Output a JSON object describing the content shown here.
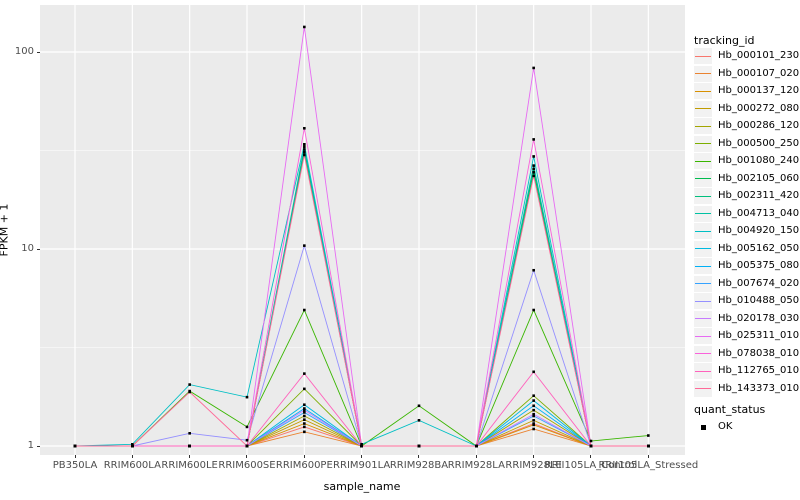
{
  "figure": {
    "panel_background": "#EBEBEB",
    "grid_color": "#FFFFFF",
    "axis_text_color": "#4D4D4D",
    "tick_color": "#333333",
    "point_color": "#000000"
  },
  "chart_data": {
    "type": "line",
    "xlabel": "sample_name",
    "ylabel": "FPKM + 1",
    "y_scale": "log10",
    "ylim": [
      1,
      150
    ],
    "y_ticks": [
      1,
      10,
      100
    ],
    "y_tick_labels": [
      "1",
      "10",
      "100"
    ],
    "y_minor_breaks": [
      3.1623,
      31.623
    ],
    "grid": "on",
    "legend_position": "right",
    "point_marker": "small-black-square",
    "categories": [
      "PB350LA",
      "RRIM600LA",
      "RRIM600LE",
      "RRIM600SE",
      "RRIM600PE",
      "RRIM901LA",
      "RRIM928BA",
      "RRIM928LA",
      "RRIM928LE",
      "RRII105LA_Control",
      "RRII105LA_Stressed"
    ],
    "series": [
      {
        "name": "Hb_000101_230",
        "color": "#F8766D",
        "values": [
          1,
          1,
          1,
          1,
          1.25,
          1,
          1,
          1,
          1.3,
          1,
          1
        ]
      },
      {
        "name": "Hb_000107_020",
        "color": "#EA8331",
        "values": [
          1,
          1,
          1,
          1,
          1.18,
          1,
          1,
          1,
          1.22,
          1,
          1
        ]
      },
      {
        "name": "Hb_000137_120",
        "color": "#D89000",
        "values": [
          1,
          1,
          1,
          1,
          1.3,
          1,
          1,
          1,
          1.28,
          1,
          1
        ]
      },
      {
        "name": "Hb_000272_080",
        "color": "#C09B00",
        "values": [
          1,
          1,
          1,
          1,
          1.36,
          1,
          1,
          1,
          1.35,
          1,
          1
        ]
      },
      {
        "name": "Hb_000286_120",
        "color": "#A3A500",
        "values": [
          1,
          1,
          1,
          1,
          1.42,
          1,
          1,
          1,
          1.52,
          1,
          1
        ]
      },
      {
        "name": "Hb_000500_250",
        "color": "#7CAE00",
        "values": [
          1,
          1,
          1,
          1,
          1.95,
          1,
          1,
          1,
          1.8,
          1,
          1
        ]
      },
      {
        "name": "Hb_001080_240",
        "color": "#39B600",
        "values": [
          1,
          1,
          1.9,
          1.25,
          4.9,
          1,
          1.6,
          1,
          4.9,
          1.06,
          1.13
        ]
      },
      {
        "name": "Hb_002105_060",
        "color": "#00BB4E",
        "values": [
          1,
          1,
          1,
          1,
          31,
          1,
          1,
          1,
          24.5,
          1,
          1
        ]
      },
      {
        "name": "Hb_002311_420",
        "color": "#00BF7D",
        "values": [
          1,
          1,
          1,
          1,
          32,
          1,
          1,
          1,
          25.5,
          1,
          1
        ]
      },
      {
        "name": "Hb_004713_040",
        "color": "#00C1A3",
        "values": [
          1,
          1,
          1,
          1,
          33,
          1,
          1,
          1,
          26.5,
          1,
          1
        ]
      },
      {
        "name": "Hb_004920_150",
        "color": "#00BFC4",
        "values": [
          1,
          1.02,
          2.05,
          1.77,
          34,
          1.02,
          1.35,
          1,
          29.5,
          1,
          1
        ]
      },
      {
        "name": "Hb_005162_050",
        "color": "#00BAE0",
        "values": [
          1,
          1,
          1,
          1,
          1.62,
          1,
          1,
          1,
          1.7,
          1,
          1
        ]
      },
      {
        "name": "Hb_005375_080",
        "color": "#00B0F6",
        "values": [
          1,
          1,
          1,
          1,
          1.55,
          1,
          1,
          1,
          1.6,
          1,
          1
        ]
      },
      {
        "name": "Hb_007674_020",
        "color": "#35A2FF",
        "values": [
          1,
          1,
          1,
          1,
          1.48,
          1,
          1,
          1,
          1.42,
          1,
          1
        ]
      },
      {
        "name": "Hb_010488_050",
        "color": "#9590FF",
        "values": [
          1,
          1,
          1.16,
          1.07,
          10.4,
          1,
          1,
          1,
          7.8,
          1,
          1
        ]
      },
      {
        "name": "Hb_020178_030",
        "color": "#C77CFF",
        "values": [
          1,
          1,
          1,
          1,
          1.52,
          1,
          1,
          1,
          1.45,
          1,
          1
        ]
      },
      {
        "name": "Hb_025311_010",
        "color": "#E76BF3",
        "values": [
          1,
          1,
          1,
          1,
          134,
          1,
          1,
          1,
          83,
          1,
          1
        ]
      },
      {
        "name": "Hb_078038_010",
        "color": "#FA62DB",
        "values": [
          1,
          1,
          1,
          1,
          41,
          1,
          1,
          1,
          36,
          1,
          1
        ]
      },
      {
        "name": "Hb_112765_010",
        "color": "#FF62BC",
        "values": [
          1,
          1,
          1,
          1,
          2.33,
          1,
          1,
          1,
          2.38,
          1,
          1
        ]
      },
      {
        "name": "Hb_143373_010",
        "color": "#FF6A98",
        "values": [
          1,
          1,
          1.88,
          1,
          30,
          1,
          1,
          1,
          23.5,
          1,
          1
        ]
      }
    ]
  },
  "legend": {
    "tracking_title": "tracking_id",
    "quant_title": "quant_status",
    "quant_items": [
      {
        "label": "OK"
      }
    ]
  }
}
